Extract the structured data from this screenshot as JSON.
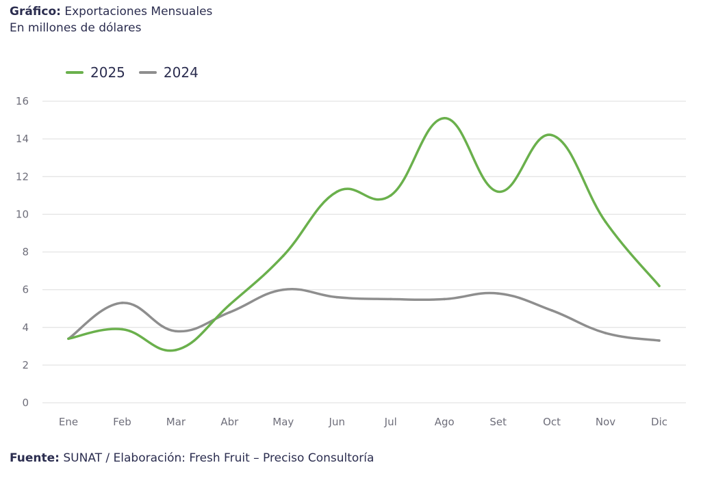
{
  "header": {
    "title_bold": "Gráfico:",
    "title_rest": " Exportaciones Mensuales",
    "subtitle": "En millones de dólares"
  },
  "footer": {
    "label_bold": "Fuente:",
    "text": " SUNAT / Elaboración: Fresh Fruit – Preciso Consultoría"
  },
  "colors": {
    "series_2025": "#6ab04c",
    "series_2024": "#8e8e8e",
    "grid": "#e3e3e3",
    "text": "#2b2d4f"
  },
  "chart_data": {
    "type": "line",
    "title": "Exportaciones Mensuales",
    "ylabel": "En millones de dólares",
    "xlabel": "",
    "categories": [
      "Ene",
      "Feb",
      "Mar",
      "Abr",
      "May",
      "Jun",
      "Jul",
      "Ago",
      "Set",
      "Oct",
      "Nov",
      "Dic"
    ],
    "ylim": [
      0,
      16
    ],
    "yticks": [
      "0",
      "2",
      "4",
      "6",
      "8",
      "10",
      "12",
      "14",
      "16"
    ],
    "grid": true,
    "legend_position": "top-left",
    "series": [
      {
        "name": "2025",
        "values": [
          3.4,
          3.9,
          2.8,
          5.2,
          7.8,
          11.2,
          11.0,
          15.1,
          11.2,
          14.2,
          9.6,
          6.2
        ]
      },
      {
        "name": "2024",
        "values": [
          3.4,
          5.3,
          3.8,
          4.8,
          6.0,
          5.6,
          5.5,
          5.5,
          5.8,
          4.9,
          3.7,
          3.3
        ]
      }
    ]
  }
}
